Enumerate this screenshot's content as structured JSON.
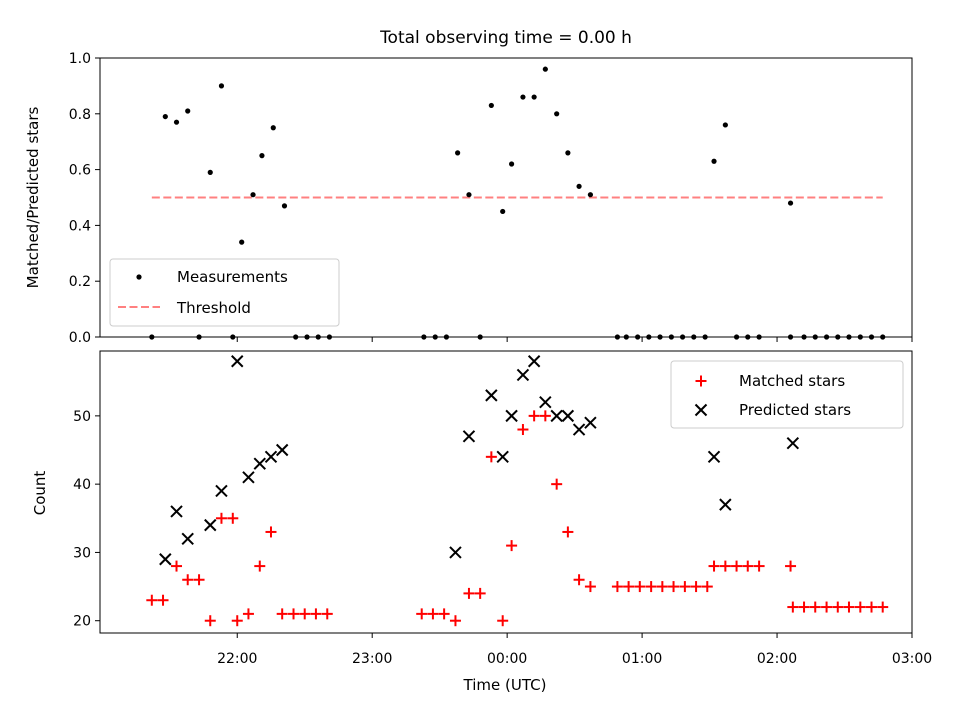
{
  "chart_data": [
    {
      "type": "scatter",
      "title": "Total observing time = 0.00 h",
      "xlabel": "",
      "ylabel": "Matched/Predicted stars",
      "ylim": [
        0,
        1.0
      ],
      "yticks": [
        "0.0",
        "0.2",
        "0.4",
        "0.6",
        "0.8",
        "1.0"
      ],
      "xlim_hours": [
        20.983,
        27.0
      ],
      "legend": {
        "placement": "lower-left",
        "entries": [
          "Measurements",
          "Threshold"
        ]
      },
      "threshold": {
        "name": "Threshold",
        "value": 0.5,
        "x_start": 21.367,
        "x_end": 26.783,
        "color": "#ff8080"
      },
      "series": [
        {
          "name": "Measurements",
          "color": "#000000",
          "points": [
            [
              21.367,
              0.0
            ],
            [
              21.467,
              0.79
            ],
            [
              21.55,
              0.77
            ],
            [
              21.633,
              0.81
            ],
            [
              21.717,
              0.0
            ],
            [
              21.8,
              0.59
            ],
            [
              21.883,
              0.9
            ],
            [
              21.967,
              0.0
            ],
            [
              22.033,
              0.34
            ],
            [
              22.117,
              0.51
            ],
            [
              22.183,
              0.65
            ],
            [
              22.267,
              0.75
            ],
            [
              22.35,
              0.47
            ],
            [
              22.433,
              0.0
            ],
            [
              22.517,
              0.0
            ],
            [
              22.6,
              0.0
            ],
            [
              22.683,
              0.0
            ],
            [
              23.383,
              0.0
            ],
            [
              23.467,
              0.0
            ],
            [
              23.55,
              0.0
            ],
            [
              23.633,
              0.66
            ],
            [
              23.717,
              0.51
            ],
            [
              23.8,
              0.0
            ],
            [
              23.883,
              0.83
            ],
            [
              23.967,
              0.45
            ],
            [
              24.033,
              0.62
            ],
            [
              24.117,
              0.86
            ],
            [
              24.2,
              0.86
            ],
            [
              24.283,
              0.96
            ],
            [
              24.367,
              0.8
            ],
            [
              24.45,
              0.66
            ],
            [
              24.533,
              0.54
            ],
            [
              24.617,
              0.51
            ],
            [
              24.817,
              0.0
            ],
            [
              24.883,
              0.0
            ],
            [
              24.967,
              0.0
            ],
            [
              25.05,
              0.0
            ],
            [
              25.133,
              0.0
            ],
            [
              25.217,
              0.0
            ],
            [
              25.3,
              0.0
            ],
            [
              25.383,
              0.0
            ],
            [
              25.467,
              0.0
            ],
            [
              25.533,
              0.63
            ],
            [
              25.617,
              0.76
            ],
            [
              25.7,
              0.0
            ],
            [
              25.783,
              0.0
            ],
            [
              25.867,
              0.0
            ],
            [
              26.1,
              0.48
            ],
            [
              26.1,
              0.0
            ],
            [
              26.2,
              0.0
            ],
            [
              26.283,
              0.0
            ],
            [
              26.367,
              0.0
            ],
            [
              26.45,
              0.0
            ],
            [
              26.533,
              0.0
            ],
            [
              26.617,
              0.0
            ],
            [
              26.7,
              0.0
            ],
            [
              26.783,
              0.0
            ]
          ]
        }
      ]
    },
    {
      "type": "scatter",
      "title": "",
      "xlabel": "Time (UTC)",
      "ylabel": "Count",
      "ylim": [
        18.2,
        59.5
      ],
      "yticks": [
        "20",
        "30",
        "40",
        "50"
      ],
      "xlim_hours": [
        20.983,
        27.0
      ],
      "xtick_labels": [
        "22:00",
        "23:00",
        "00:00",
        "01:00",
        "02:00",
        "03:00"
      ],
      "legend": {
        "placement": "top-right",
        "entries": [
          "Matched stars",
          "Predicted stars"
        ]
      },
      "series": [
        {
          "name": "Matched stars",
          "marker": "plus",
          "color": "#ff0000",
          "points": [
            [
              21.367,
              23
            ],
            [
              21.45,
              23
            ],
            [
              21.55,
              28
            ],
            [
              21.633,
              26
            ],
            [
              21.717,
              26
            ],
            [
              21.8,
              20
            ],
            [
              21.883,
              35
            ],
            [
              21.967,
              35
            ],
            [
              22.0,
              20
            ],
            [
              22.083,
              21
            ],
            [
              22.167,
              28
            ],
            [
              22.25,
              33
            ],
            [
              22.333,
              21
            ],
            [
              22.417,
              21
            ],
            [
              22.5,
              21
            ],
            [
              22.583,
              21
            ],
            [
              22.667,
              21
            ],
            [
              23.367,
              21
            ],
            [
              23.45,
              21
            ],
            [
              23.533,
              21
            ],
            [
              23.617,
              20
            ],
            [
              23.717,
              24
            ],
            [
              23.8,
              24
            ],
            [
              23.883,
              44
            ],
            [
              23.967,
              20
            ],
            [
              24.033,
              31
            ],
            [
              24.117,
              48
            ],
            [
              24.2,
              50
            ],
            [
              24.283,
              50
            ],
            [
              24.367,
              40
            ],
            [
              24.45,
              33
            ],
            [
              24.533,
              26
            ],
            [
              24.617,
              25
            ],
            [
              24.817,
              25
            ],
            [
              24.9,
              25
            ],
            [
              24.983,
              25
            ],
            [
              25.067,
              25
            ],
            [
              25.15,
              25
            ],
            [
              25.233,
              25
            ],
            [
              25.317,
              25
            ],
            [
              25.4,
              25
            ],
            [
              25.483,
              25
            ],
            [
              25.533,
              28
            ],
            [
              25.617,
              28
            ],
            [
              25.7,
              28
            ],
            [
              25.783,
              28
            ],
            [
              25.867,
              28
            ],
            [
              26.1,
              28
            ],
            [
              26.117,
              22
            ],
            [
              26.2,
              22
            ],
            [
              26.283,
              22
            ],
            [
              26.367,
              22
            ],
            [
              26.45,
              22
            ],
            [
              26.533,
              22
            ],
            [
              26.617,
              22
            ],
            [
              26.7,
              22
            ],
            [
              26.783,
              22
            ]
          ]
        },
        {
          "name": "Predicted stars",
          "marker": "x",
          "color": "#000000",
          "points": [
            [
              21.467,
              29
            ],
            [
              21.55,
              36
            ],
            [
              21.633,
              32
            ],
            [
              21.8,
              34
            ],
            [
              21.883,
              39
            ],
            [
              22.0,
              58
            ],
            [
              22.083,
              41
            ],
            [
              22.167,
              43
            ],
            [
              22.25,
              44
            ],
            [
              22.333,
              45
            ],
            [
              23.617,
              30
            ],
            [
              23.717,
              47
            ],
            [
              23.883,
              53
            ],
            [
              23.967,
              44
            ],
            [
              24.033,
              50
            ],
            [
              24.117,
              56
            ],
            [
              24.2,
              58
            ],
            [
              24.283,
              52
            ],
            [
              24.367,
              50
            ],
            [
              24.45,
              50
            ],
            [
              24.533,
              48
            ],
            [
              24.617,
              49
            ],
            [
              25.533,
              44
            ],
            [
              25.617,
              37
            ],
            [
              26.117,
              46
            ]
          ]
        }
      ]
    }
  ]
}
